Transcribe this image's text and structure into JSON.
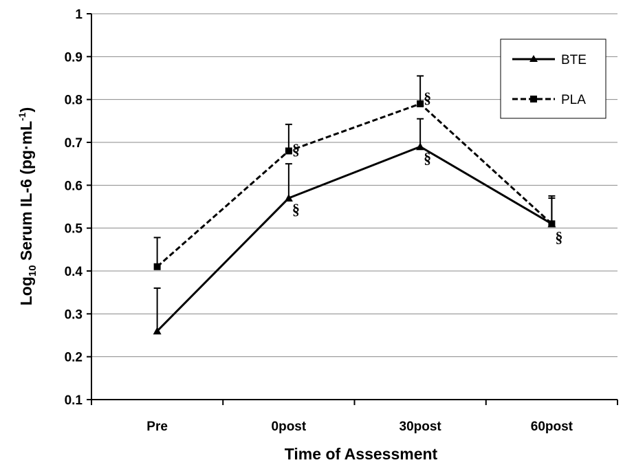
{
  "chart_data": {
    "type": "line",
    "title": "",
    "xlabel": "Time of Assessment",
    "ylabel": {
      "prefix": "Log",
      "subscript": "10",
      "main": " Serum IL-6 (pg·mL",
      "superscript": "-1",
      "suffix": ")"
    },
    "categories": [
      "Pre",
      "0post",
      "30post",
      "60post"
    ],
    "ylim": [
      0.1,
      1
    ],
    "yticks": [
      0.1,
      0.2,
      0.3,
      0.4,
      0.5,
      0.6,
      0.7,
      0.8,
      0.9,
      1
    ],
    "ytick_labels": [
      "0.1",
      "0.2",
      "0.3",
      "0.4",
      "0.5",
      "0.6",
      "0.7",
      "0.8",
      "0.9",
      "1"
    ],
    "grid": "horizontal",
    "legend_position": "top-right",
    "series": [
      {
        "name": "BTE",
        "values": [
          0.26,
          0.57,
          0.69,
          0.51
        ],
        "error_upper": [
          0.36,
          0.65,
          0.755,
          0.57
        ],
        "marker": "triangle",
        "line_style": "solid",
        "color": "#000000"
      },
      {
        "name": "PLA",
        "values": [
          0.41,
          0.68,
          0.79,
          0.51
        ],
        "error_upper": [
          0.478,
          0.742,
          0.855,
          0.575
        ],
        "marker": "square",
        "line_style": "dashed",
        "color": "#000000"
      }
    ],
    "annotations": [
      {
        "text": "§",
        "category": "0post",
        "y": 0.685,
        "series": "PLA",
        "place": "above-right"
      },
      {
        "text": "§",
        "category": "0post",
        "y": 0.545,
        "series": "BTE",
        "place": "below-right"
      },
      {
        "text": "§",
        "category": "30post",
        "y": 0.805,
        "series": "PLA",
        "place": "above-right"
      },
      {
        "text": "§",
        "category": "30post",
        "y": 0.665,
        "series": "BTE",
        "place": "below-right"
      },
      {
        "text": "§",
        "category": "60post",
        "y": 0.48,
        "series": "BTE",
        "place": "below-right"
      }
    ]
  }
}
